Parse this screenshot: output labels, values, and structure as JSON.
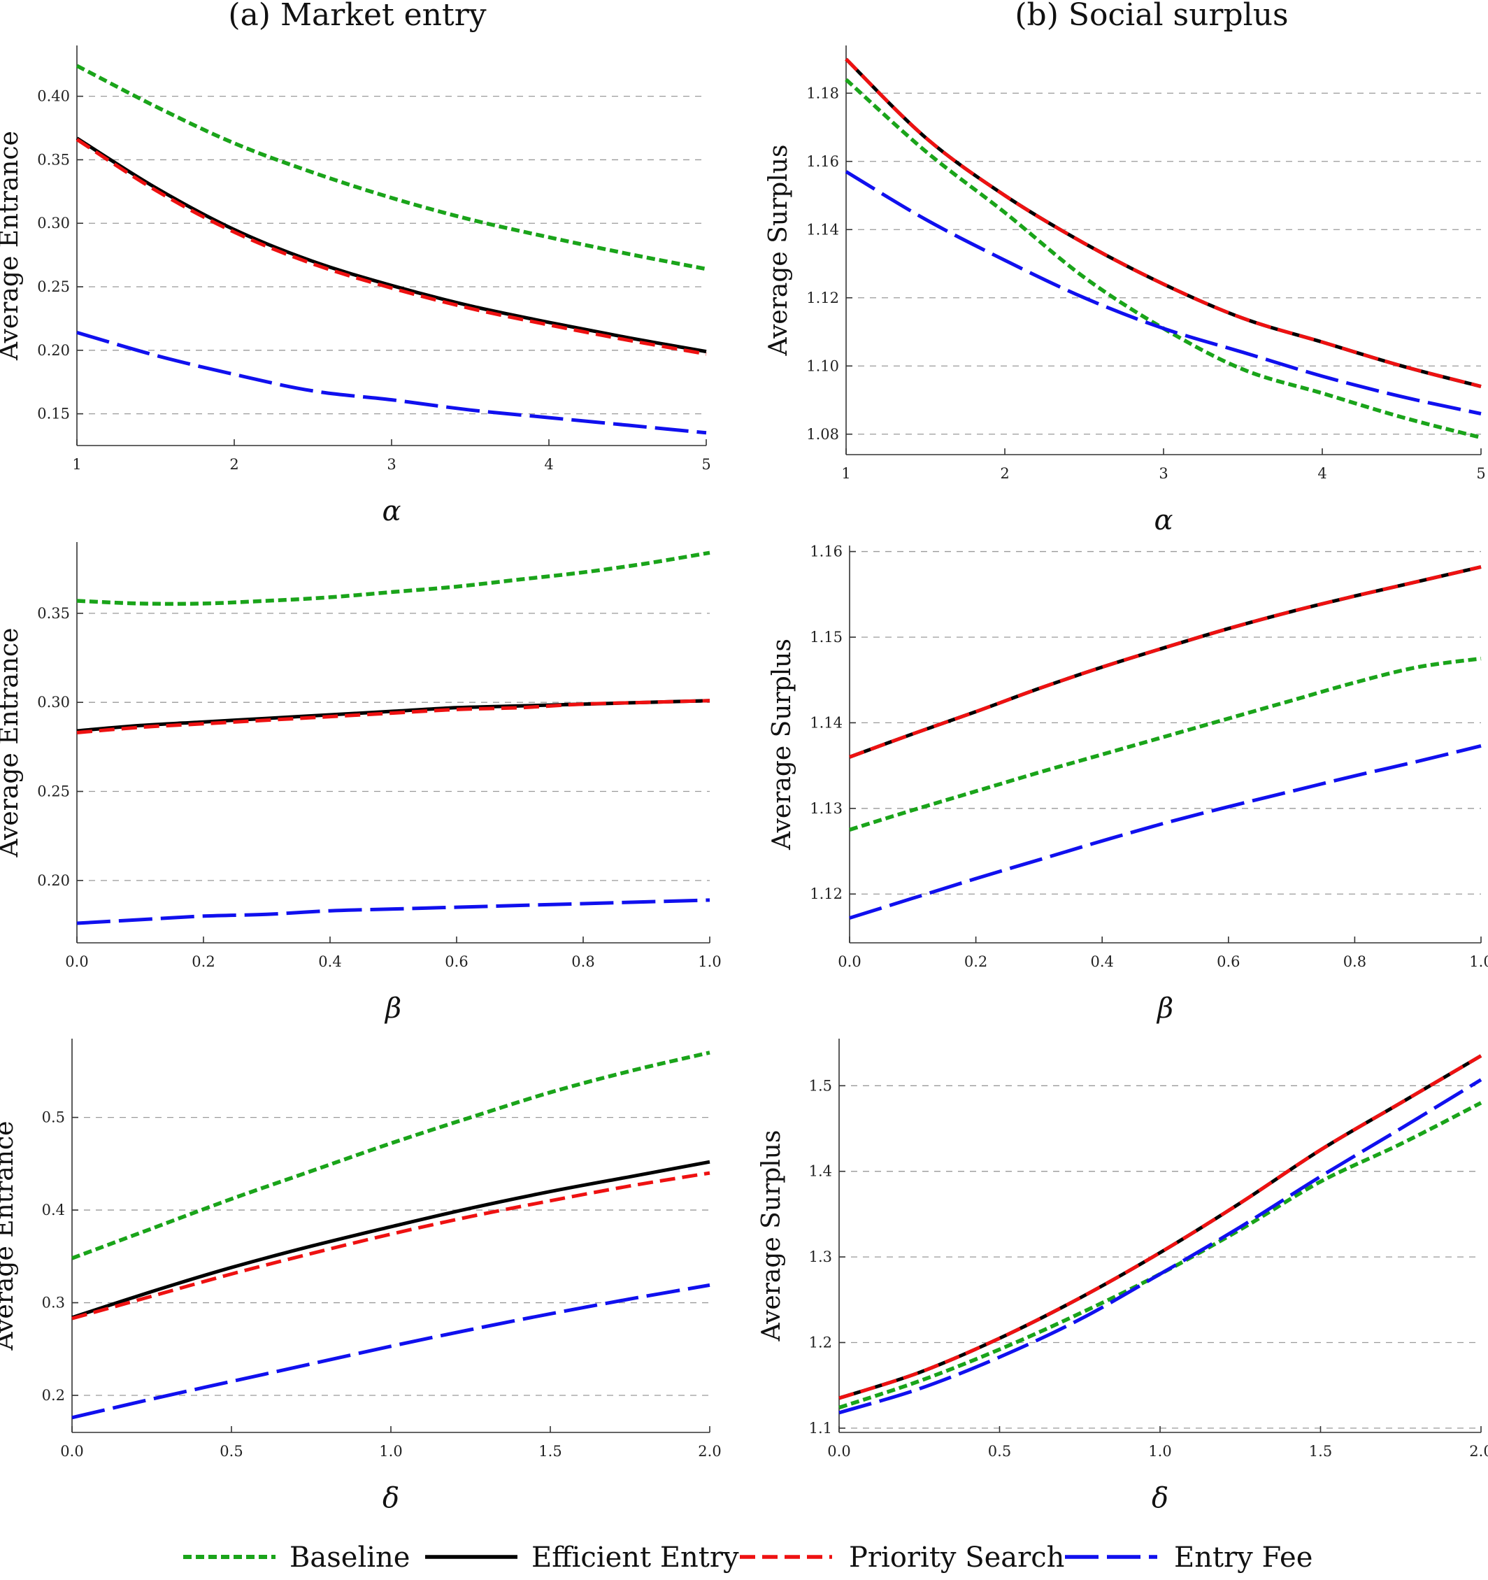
{
  "titles": {
    "left": "(a) Market entry",
    "right": "(b) Social surplus"
  },
  "colors": {
    "Baseline": "#1aa41a",
    "Efficient Entry": "#000000",
    "Priority Search": "#ee1111",
    "Entry Fee": "#1010ee"
  },
  "legend": {
    "items": [
      "Baseline",
      "Efficient Entry",
      "Priority Search",
      "Entry Fee"
    ],
    "placement": "bottom"
  },
  "chart_data": [
    {
      "type": "line",
      "ylabel": "Average  Entrance",
      "xlabel": "α",
      "xlim": [
        1,
        5
      ],
      "ylim": [
        0.125,
        0.44
      ],
      "grid": "horizontal-dashed",
      "xticks": [
        1,
        2,
        3,
        4,
        5
      ],
      "xtick_labels": [
        "1",
        "2",
        "3",
        "4",
        "5"
      ],
      "yticks": [
        0.15,
        0.2,
        0.25,
        0.3,
        0.35,
        0.4
      ],
      "ytick_labels": [
        "0.15",
        "0.20",
        "0.25",
        "0.30",
        "0.35",
        "0.40"
      ],
      "x": [
        1,
        1.5,
        2,
        2.5,
        3,
        3.5,
        4,
        4.5,
        5
      ],
      "series": [
        {
          "name": "Baseline",
          "values": [
            0.424,
            0.392,
            0.363,
            0.34,
            0.32,
            0.303,
            0.289,
            0.276,
            0.264
          ]
        },
        {
          "name": "Efficient Entry",
          "values": [
            0.367,
            0.328,
            0.295,
            0.27,
            0.251,
            0.235,
            0.222,
            0.21,
            0.199
          ]
        },
        {
          "name": "Priority Search",
          "values": [
            0.366,
            0.326,
            0.293,
            0.268,
            0.249,
            0.233,
            0.22,
            0.208,
            0.197
          ]
        },
        {
          "name": "Entry Fee",
          "values": [
            0.214,
            0.196,
            0.181,
            0.168,
            0.161,
            0.153,
            0.147,
            0.141,
            0.135
          ]
        }
      ]
    },
    {
      "type": "line",
      "ylabel": "Average  Surplus",
      "xlabel": "α",
      "xlim": [
        1,
        5
      ],
      "ylim": [
        1.074,
        1.194
      ],
      "grid": "horizontal-dashed",
      "xticks": [
        1,
        2,
        3,
        4,
        5
      ],
      "xtick_labels": [
        "1",
        "2",
        "3",
        "4",
        "5"
      ],
      "yticks": [
        1.08,
        1.1,
        1.12,
        1.14,
        1.16,
        1.18
      ],
      "ytick_labels": [
        "1.08",
        "1.10",
        "1.12",
        "1.14",
        "1.16",
        "1.18"
      ],
      "x": [
        1,
        1.5,
        2,
        2.5,
        3,
        3.5,
        4,
        4.5,
        5
      ],
      "series": [
        {
          "name": "Baseline",
          "values": [
            1.184,
            1.163,
            1.145,
            1.126,
            1.111,
            1.099,
            1.092,
            1.085,
            1.079
          ]
        },
        {
          "name": "Efficient Entry",
          "values": [
            1.19,
            1.167,
            1.15,
            1.136,
            1.124,
            1.114,
            1.107,
            1.1,
            1.094
          ]
        },
        {
          "name": "Priority Search",
          "values": [
            1.19,
            1.167,
            1.15,
            1.136,
            1.124,
            1.114,
            1.107,
            1.1,
            1.094
          ]
        },
        {
          "name": "Entry Fee",
          "values": [
            1.157,
            1.143,
            1.131,
            1.12,
            1.111,
            1.104,
            1.097,
            1.091,
            1.086
          ]
        }
      ]
    },
    {
      "type": "line",
      "ylabel": "Average  Entrance",
      "xlabel": "β",
      "xlim": [
        0,
        1
      ],
      "ylim": [
        0.165,
        0.39
      ],
      "grid": "horizontal-dashed",
      "xticks": [
        0,
        0.2,
        0.4,
        0.6,
        0.8,
        1.0
      ],
      "xtick_labels": [
        "0.0",
        "0.2",
        "0.4",
        "0.6",
        "0.8",
        "1.0"
      ],
      "yticks": [
        0.2,
        0.25,
        0.3,
        0.35
      ],
      "ytick_labels": [
        "0.20",
        "0.25",
        "0.30",
        "0.35"
      ],
      "x": [
        0,
        0.1,
        0.2,
        0.3,
        0.4,
        0.5,
        0.6,
        0.7,
        0.8,
        0.9,
        1.0
      ],
      "series": [
        {
          "name": "Baseline",
          "values": [
            0.357,
            0.3555,
            0.3555,
            0.357,
            0.359,
            0.362,
            0.365,
            0.369,
            0.373,
            0.378,
            0.384
          ]
        },
        {
          "name": "Efficient Entry",
          "values": [
            0.284,
            0.287,
            0.289,
            0.291,
            0.293,
            0.295,
            0.297,
            0.298,
            0.299,
            0.3,
            0.301
          ]
        },
        {
          "name": "Priority Search",
          "values": [
            0.283,
            0.286,
            0.288,
            0.29,
            0.292,
            0.294,
            0.296,
            0.297,
            0.299,
            0.3,
            0.301
          ]
        },
        {
          "name": "Entry Fee",
          "values": [
            0.176,
            0.178,
            0.18,
            0.181,
            0.183,
            0.184,
            0.185,
            0.186,
            0.187,
            0.188,
            0.189
          ]
        }
      ]
    },
    {
      "type": "line",
      "ylabel": "Average  Surplus",
      "xlabel": "β",
      "xlim": [
        0,
        1
      ],
      "ylim": [
        1.1143,
        1.1607
      ],
      "grid": "horizontal-dashed",
      "xticks": [
        0,
        0.2,
        0.4,
        0.6,
        0.8,
        1.0
      ],
      "xtick_labels": [
        "0.0",
        "0.2",
        "0.4",
        "0.6",
        "0.8",
        "1.0"
      ],
      "yticks": [
        1.12,
        1.13,
        1.14,
        1.15,
        1.16
      ],
      "ytick_labels": [
        "1.12",
        "1.13",
        "1.14",
        "1.15",
        "1.16"
      ],
      "x": [
        0,
        0.1,
        0.2,
        0.3,
        0.4,
        0.5,
        0.6,
        0.7,
        0.8,
        0.9,
        1.0
      ],
      "series": [
        {
          "name": "Baseline",
          "values": [
            1.1275,
            1.1298,
            1.132,
            1.1342,
            1.1363,
            1.1384,
            1.1405,
            1.1426,
            1.1447,
            1.1465,
            1.1475
          ]
        },
        {
          "name": "Efficient Entry",
          "values": [
            1.136,
            1.1387,
            1.1413,
            1.144,
            1.1465,
            1.1488,
            1.151,
            1.153,
            1.1548,
            1.1565,
            1.1582
          ]
        },
        {
          "name": "Priority Search",
          "values": [
            1.136,
            1.1387,
            1.1413,
            1.144,
            1.1465,
            1.1488,
            1.151,
            1.153,
            1.1548,
            1.1565,
            1.1582
          ]
        },
        {
          "name": "Entry Fee",
          "values": [
            1.1172,
            1.1195,
            1.1218,
            1.124,
            1.1262,
            1.1283,
            1.1302,
            1.132,
            1.1338,
            1.1355,
            1.1373
          ]
        }
      ]
    },
    {
      "type": "line",
      "ylabel": "Average  Entrance",
      "xlabel": "δ",
      "xlim": [
        0,
        2
      ],
      "ylim": [
        0.16,
        0.585
      ],
      "grid": "horizontal-dashed",
      "xticks": [
        0,
        0.5,
        1.0,
        1.5,
        2.0
      ],
      "xtick_labels": [
        "0.0",
        "0.5",
        "1.0",
        "1.5",
        "2.0"
      ],
      "yticks": [
        0.2,
        0.3,
        0.4,
        0.5
      ],
      "ytick_labels": [
        "0.2",
        "0.3",
        "0.4",
        "0.5"
      ],
      "x": [
        0,
        0.25,
        0.5,
        0.75,
        1.0,
        1.25,
        1.5,
        1.75,
        2.0
      ],
      "series": [
        {
          "name": "Baseline",
          "values": [
            0.348,
            0.38,
            0.412,
            0.442,
            0.472,
            0.5,
            0.527,
            0.55,
            0.57
          ]
        },
        {
          "name": "Efficient Entry",
          "values": [
            0.284,
            0.312,
            0.338,
            0.361,
            0.382,
            0.402,
            0.42,
            0.436,
            0.452
          ]
        },
        {
          "name": "Priority Search",
          "values": [
            0.283,
            0.307,
            0.331,
            0.353,
            0.374,
            0.393,
            0.41,
            0.426,
            0.44
          ]
        },
        {
          "name": "Entry Fee",
          "values": [
            0.176,
            0.196,
            0.215,
            0.234,
            0.253,
            0.271,
            0.288,
            0.304,
            0.319
          ]
        }
      ]
    },
    {
      "type": "line",
      "ylabel": "Average  Surplus",
      "xlabel": "δ",
      "xlim": [
        0,
        2
      ],
      "ylim": [
        1.095,
        1.555
      ],
      "grid": "horizontal-dashed",
      "xticks": [
        0,
        0.5,
        1.0,
        1.5,
        2.0
      ],
      "xtick_labels": [
        "0.0",
        "0.5",
        "1.0",
        "1.5",
        "2.0"
      ],
      "yticks": [
        1.1,
        1.2,
        1.3,
        1.4,
        1.5
      ],
      "ytick_labels": [
        "1.1",
        "1.2",
        "1.3",
        "1.4",
        "1.5"
      ],
      "x": [
        0,
        0.25,
        0.5,
        0.75,
        1.0,
        1.25,
        1.5,
        1.75,
        2.0
      ],
      "series": [
        {
          "name": "Baseline",
          "values": [
            1.124,
            1.155,
            1.192,
            1.234,
            1.28,
            1.332,
            1.388,
            1.432,
            1.48
          ]
        },
        {
          "name": "Efficient Entry",
          "values": [
            1.135,
            1.165,
            1.205,
            1.252,
            1.305,
            1.363,
            1.425,
            1.48,
            1.535
          ]
        },
        {
          "name": "Priority Search",
          "values": [
            1.135,
            1.165,
            1.205,
            1.252,
            1.305,
            1.363,
            1.425,
            1.48,
            1.535
          ]
        },
        {
          "name": "Entry Fee",
          "values": [
            1.118,
            1.146,
            1.183,
            1.227,
            1.28,
            1.335,
            1.394,
            1.45,
            1.507
          ]
        }
      ]
    }
  ]
}
